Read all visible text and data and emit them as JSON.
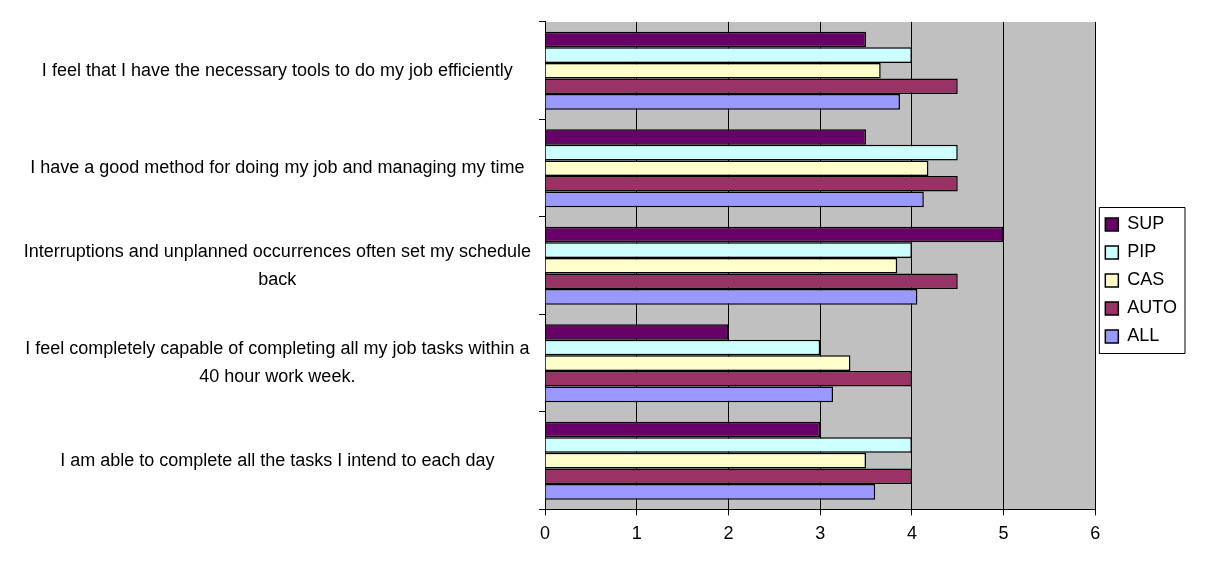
{
  "chart_data": {
    "type": "bar",
    "orientation": "horizontal",
    "categories": [
      "I feel that I have the necessary tools to do my job efficiently",
      "I have a good method for doing my job and managing my time",
      "Interruptions and unplanned occurrences often set my schedule back",
      "I feel completely capable of completing all my job tasks within a 40 hour work week.",
      "I am able to complete all the tasks I intend to each day"
    ],
    "series": [
      {
        "name": "SUP",
        "color": "#660066",
        "values": [
          3.5,
          3.5,
          5,
          2,
          3
        ]
      },
      {
        "name": "PIP",
        "color": "#ccffff",
        "values": [
          4,
          4.5,
          4,
          3,
          4
        ]
      },
      {
        "name": "CAS",
        "color": "#ffffcc",
        "values": [
          3.66,
          4.18,
          3.84,
          3.33,
          3.5
        ]
      },
      {
        "name": "AUTO",
        "color": "#993366",
        "values": [
          4.5,
          4.5,
          4.5,
          4,
          4
        ]
      },
      {
        "name": "ALL",
        "color": "#9999ff",
        "values": [
          3.87,
          4.13,
          4.06,
          3.14,
          3.6
        ]
      }
    ],
    "xlim": [
      0,
      6
    ],
    "xticks": [
      0,
      1,
      2,
      3,
      4,
      5,
      6
    ],
    "grid": "x",
    "legend": "right"
  }
}
